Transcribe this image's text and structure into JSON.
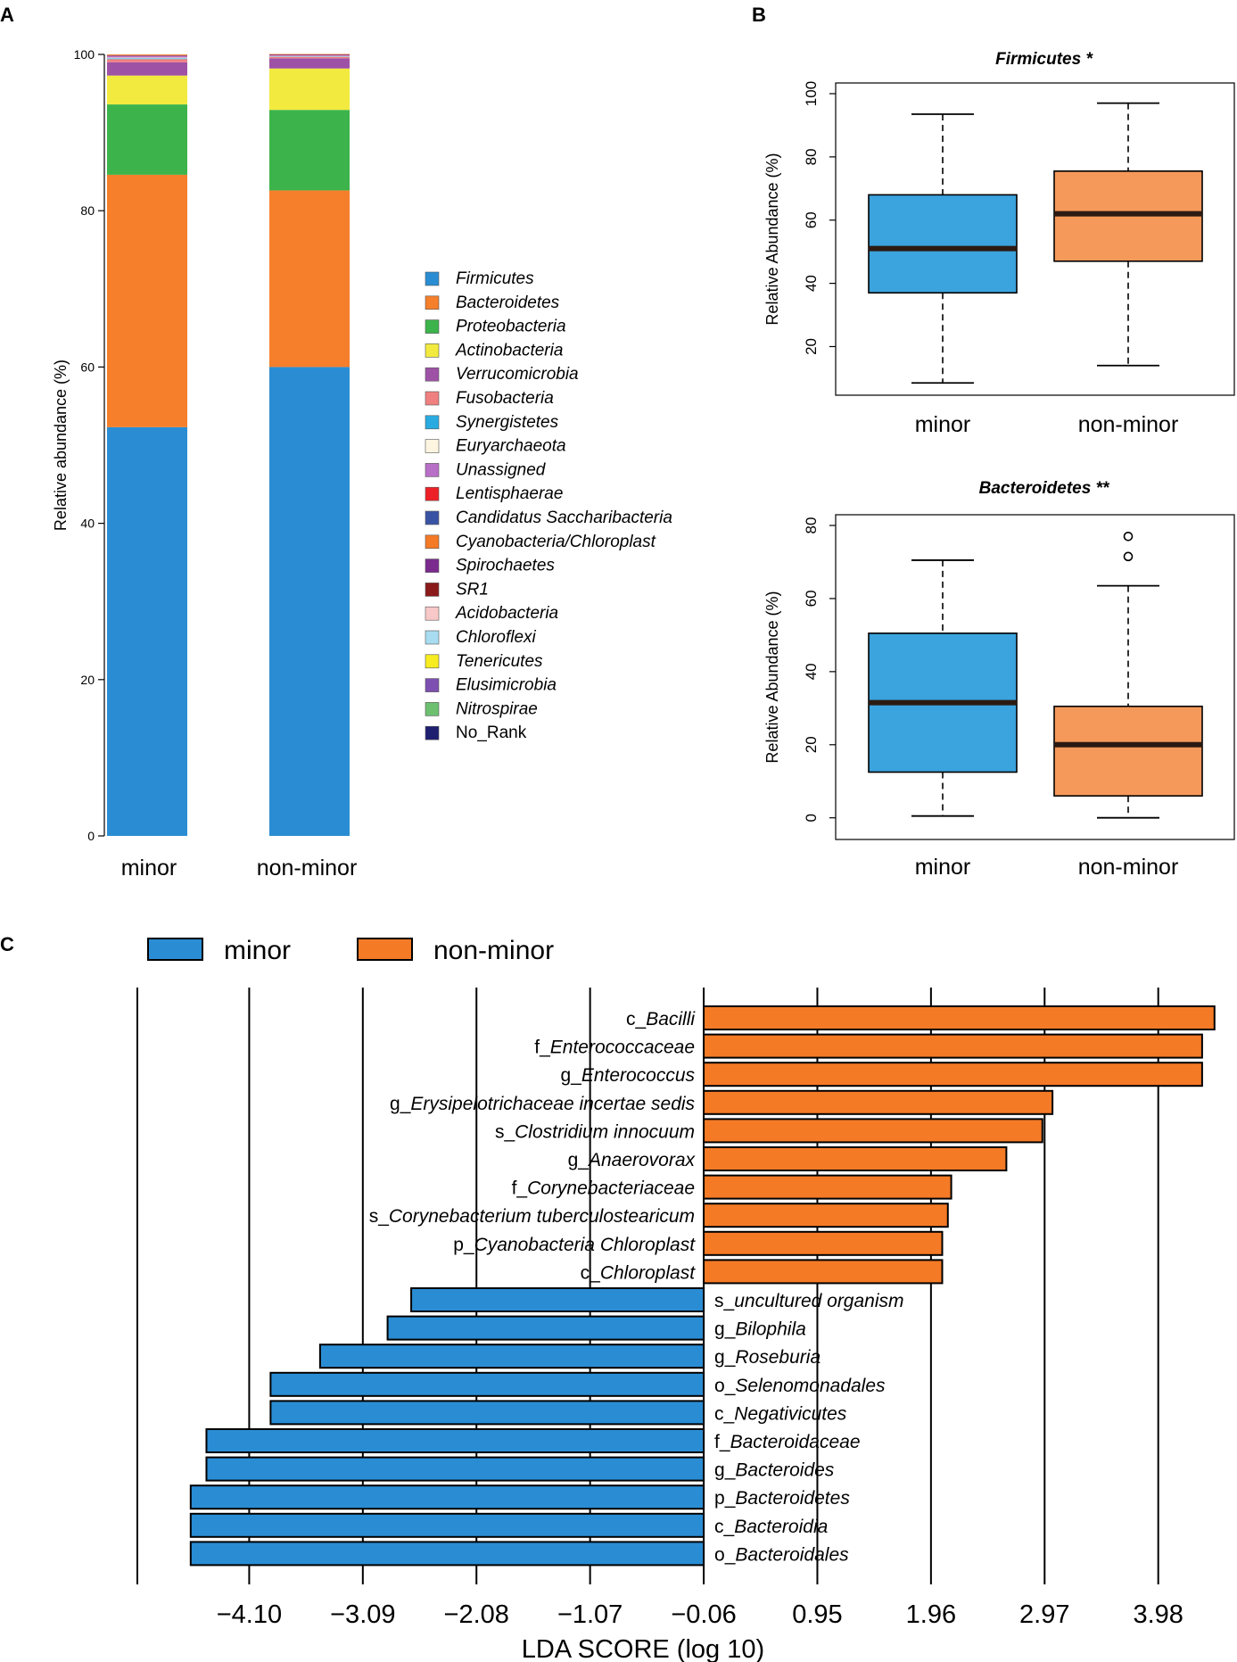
{
  "panel_labels": {
    "a": "A",
    "b": "B",
    "c": "C"
  },
  "colors": {
    "blue_bar": "#2a8dd4",
    "orange_bar": "#f57f2a",
    "box_blue": "#3ba3dd",
    "box_orange": "#f5995a",
    "lda_blue": "#2a8dd4",
    "lda_orange": "#f47a26"
  },
  "chart_data": [
    {
      "id": "A",
      "type": "bar",
      "stacked": true,
      "ylabel": "Relative abundance (%)",
      "ylim": [
        0,
        100
      ],
      "yticks": [
        0,
        20,
        40,
        60,
        80,
        100
      ],
      "categories": [
        "minor",
        "non-minor"
      ],
      "series": [
        {
          "name": "Firmicutes",
          "color": "#2a8dd4",
          "values": [
            52.3,
            60.0
          ]
        },
        {
          "name": "Bacteroidetes",
          "color": "#f57f2a",
          "values": [
            32.3,
            22.6
          ]
        },
        {
          "name": "Proteobacteria",
          "color": "#3cb44b",
          "values": [
            9.0,
            10.3
          ]
        },
        {
          "name": "Actinobacteria",
          "color": "#f2ea3f",
          "values": [
            3.7,
            5.3
          ]
        },
        {
          "name": "Verrucomicrobia",
          "color": "#9e52a6",
          "values": [
            1.7,
            1.3
          ]
        },
        {
          "name": "Fusobacteria",
          "color": "#f08080",
          "values": [
            0.4,
            0.2
          ]
        },
        {
          "name": "Synergistetes",
          "color": "#29abe2",
          "values": [
            0.1,
            0.05
          ]
        },
        {
          "name": "Euryarchaeota",
          "color": "#fdf5e0",
          "values": [
            0.1,
            0.05
          ]
        },
        {
          "name": "Unassigned",
          "color": "#b86fc6",
          "values": [
            0.2,
            0.1
          ]
        },
        {
          "name": "Lentisphaerae",
          "color": "#ee2027",
          "values": [
            0.05,
            0.05
          ]
        },
        {
          "name": "Candidatus Saccharibacteria",
          "color": "#3953a4",
          "values": [
            0.05,
            0.05
          ]
        },
        {
          "name": "Cyanobacteria/Chloroplast",
          "color": "#f47a26",
          "values": [
            0.1,
            0.05
          ]
        },
        {
          "name": "Spirochaetes",
          "color": "#7b2a8e",
          "values": [
            0.0,
            0.0
          ]
        },
        {
          "name": "SR1",
          "color": "#8b1a1a",
          "values": [
            0.0,
            0.0
          ]
        },
        {
          "name": "Acidobacteria",
          "color": "#f8c8c8",
          "values": [
            0.0,
            0.0
          ]
        },
        {
          "name": "Chloroflexi",
          "color": "#a8dcf0",
          "values": [
            0.0,
            0.0
          ]
        },
        {
          "name": "Tenericutes",
          "color": "#f7ec1f",
          "values": [
            0.0,
            0.0
          ]
        },
        {
          "name": "Elusimicrobia",
          "color": "#7d4fb0",
          "values": [
            0.0,
            0.0
          ]
        },
        {
          "name": "Nitrospirae",
          "color": "#6cc070",
          "values": [
            0.0,
            0.0
          ]
        },
        {
          "name": "No_Rank",
          "color": "#1f1f70",
          "values": [
            0.0,
            0.0
          ]
        }
      ]
    },
    {
      "id": "B1",
      "type": "box",
      "title": "Firmicutes *",
      "ylabel": "Relative Abundance (%)",
      "ylim": [
        8,
        100
      ],
      "yticks": [
        20,
        40,
        60,
        80,
        100
      ],
      "categories": [
        "minor",
        "non-minor"
      ],
      "boxes": [
        {
          "name": "minor",
          "color": "#3ba3dd",
          "whislo": 8.5,
          "q1": 37,
          "med": 51,
          "q3": 68,
          "whishi": 93.5,
          "fliers": []
        },
        {
          "name": "non-minor",
          "color": "#f5995a",
          "whislo": 14,
          "q1": 47,
          "med": 62,
          "q3": 75.5,
          "whishi": 97,
          "fliers": []
        }
      ]
    },
    {
      "id": "B2",
      "type": "box",
      "title": "Bacteroidetes **",
      "ylabel": "Relative Abundance (%)",
      "ylim": [
        -3,
        80
      ],
      "yticks": [
        0,
        20,
        40,
        60,
        80
      ],
      "categories": [
        "minor",
        "non-minor"
      ],
      "boxes": [
        {
          "name": "minor",
          "color": "#3ba3dd",
          "whislo": 0.5,
          "q1": 12.5,
          "med": 31.5,
          "q3": 50.5,
          "whishi": 70.5,
          "fliers": []
        },
        {
          "name": "non-minor",
          "color": "#f5995a",
          "whislo": 0,
          "q1": 6,
          "med": 20,
          "q3": 30.5,
          "whishi": 63.5,
          "fliers": [
            71.5,
            77
          ]
        }
      ]
    },
    {
      "id": "C",
      "type": "bar",
      "orientation": "horizontal",
      "xlabel": "LDA SCORE (log 10)",
      "xlim": [
        -5.11,
        4.68
      ],
      "xticks": [
        -4.1,
        -3.09,
        -2.08,
        -1.07,
        -0.06,
        0.95,
        1.96,
        2.97,
        3.98
      ],
      "xtick_labels": [
        "−4.10",
        "−3.09",
        "−2.08",
        "−1.07",
        "−0.06",
        "0.95",
        "1.96",
        "2.97",
        "3.98"
      ],
      "legend": [
        {
          "name": "minor",
          "color": "#2a8dd4"
        },
        {
          "name": "non-minor",
          "color": "#f47a26"
        }
      ],
      "bars": [
        {
          "prefix": "c_",
          "name": "Bacilli",
          "value": 4.48,
          "group": "non-minor"
        },
        {
          "prefix": "f_",
          "name": "Enterococcaceae",
          "value": 4.37,
          "group": "non-minor"
        },
        {
          "prefix": "g_",
          "name": "Enterococcus",
          "value": 4.37,
          "group": "non-minor"
        },
        {
          "prefix": "g_",
          "name": "Erysipelotrichaceae incertae sedis",
          "value": 3.04,
          "group": "non-minor"
        },
        {
          "prefix": "s_",
          "name": "Clostridium innocuum",
          "value": 2.95,
          "group": "non-minor"
        },
        {
          "prefix": "g_",
          "name": "Anaerovorax",
          "value": 2.63,
          "group": "non-minor"
        },
        {
          "prefix": "f_",
          "name": "Corynebacteriaceae",
          "value": 2.14,
          "group": "non-minor"
        },
        {
          "prefix": "s_",
          "name": "Corynebacterium tuberculostearicum",
          "value": 2.11,
          "group": "non-minor"
        },
        {
          "prefix": "p_",
          "name": "Cyanobacteria Chloroplast",
          "value": 2.06,
          "group": "non-minor"
        },
        {
          "prefix": "c_",
          "name": "Chloroplast",
          "value": 2.06,
          "group": "non-minor"
        },
        {
          "prefix": "s_",
          "name": "uncultured organism",
          "value": -2.66,
          "group": "minor"
        },
        {
          "prefix": "g_",
          "name": "Bilophila",
          "value": -2.87,
          "group": "minor"
        },
        {
          "prefix": "g_",
          "name": "Roseburia",
          "value": -3.47,
          "group": "minor"
        },
        {
          "prefix": "o_",
          "name": "Selenomonadales",
          "value": -3.91,
          "group": "minor"
        },
        {
          "prefix": "c_",
          "name": "Negativicutes",
          "value": -3.91,
          "group": "minor"
        },
        {
          "prefix": "f_",
          "name": "Bacteroidaceae",
          "value": -4.48,
          "group": "minor"
        },
        {
          "prefix": "g_",
          "name": "Bacteroides",
          "value": -4.48,
          "group": "minor"
        },
        {
          "prefix": "p_",
          "name": "Bacteroidetes",
          "value": -4.62,
          "group": "minor"
        },
        {
          "prefix": "c_",
          "name": "Bacteroidia",
          "value": -4.62,
          "group": "minor"
        },
        {
          "prefix": "o_",
          "name": "Bacteroidales",
          "value": -4.62,
          "group": "minor"
        }
      ]
    }
  ]
}
